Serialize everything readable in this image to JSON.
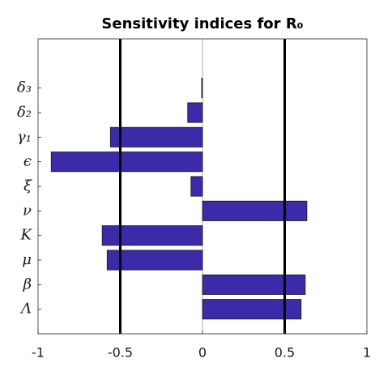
{
  "chart_data": {
    "type": "barh",
    "title": "Sensitivity indices for R₀",
    "categories": [
      "Λ",
      "β",
      "μ",
      "K",
      "ν",
      "ξ",
      "ϵ",
      "γ₁",
      "δ₂",
      "δ₃"
    ],
    "values": [
      0.6,
      0.625,
      -0.58,
      -0.61,
      0.635,
      -0.07,
      -0.92,
      -0.56,
      -0.09,
      -0.005
    ],
    "color": "#3b2ba8",
    "xlim": [
      -1,
      1
    ],
    "xticks": [
      -1,
      -0.5,
      0,
      0.5,
      1
    ],
    "reference_lines": [
      -0.5,
      0.5
    ]
  }
}
